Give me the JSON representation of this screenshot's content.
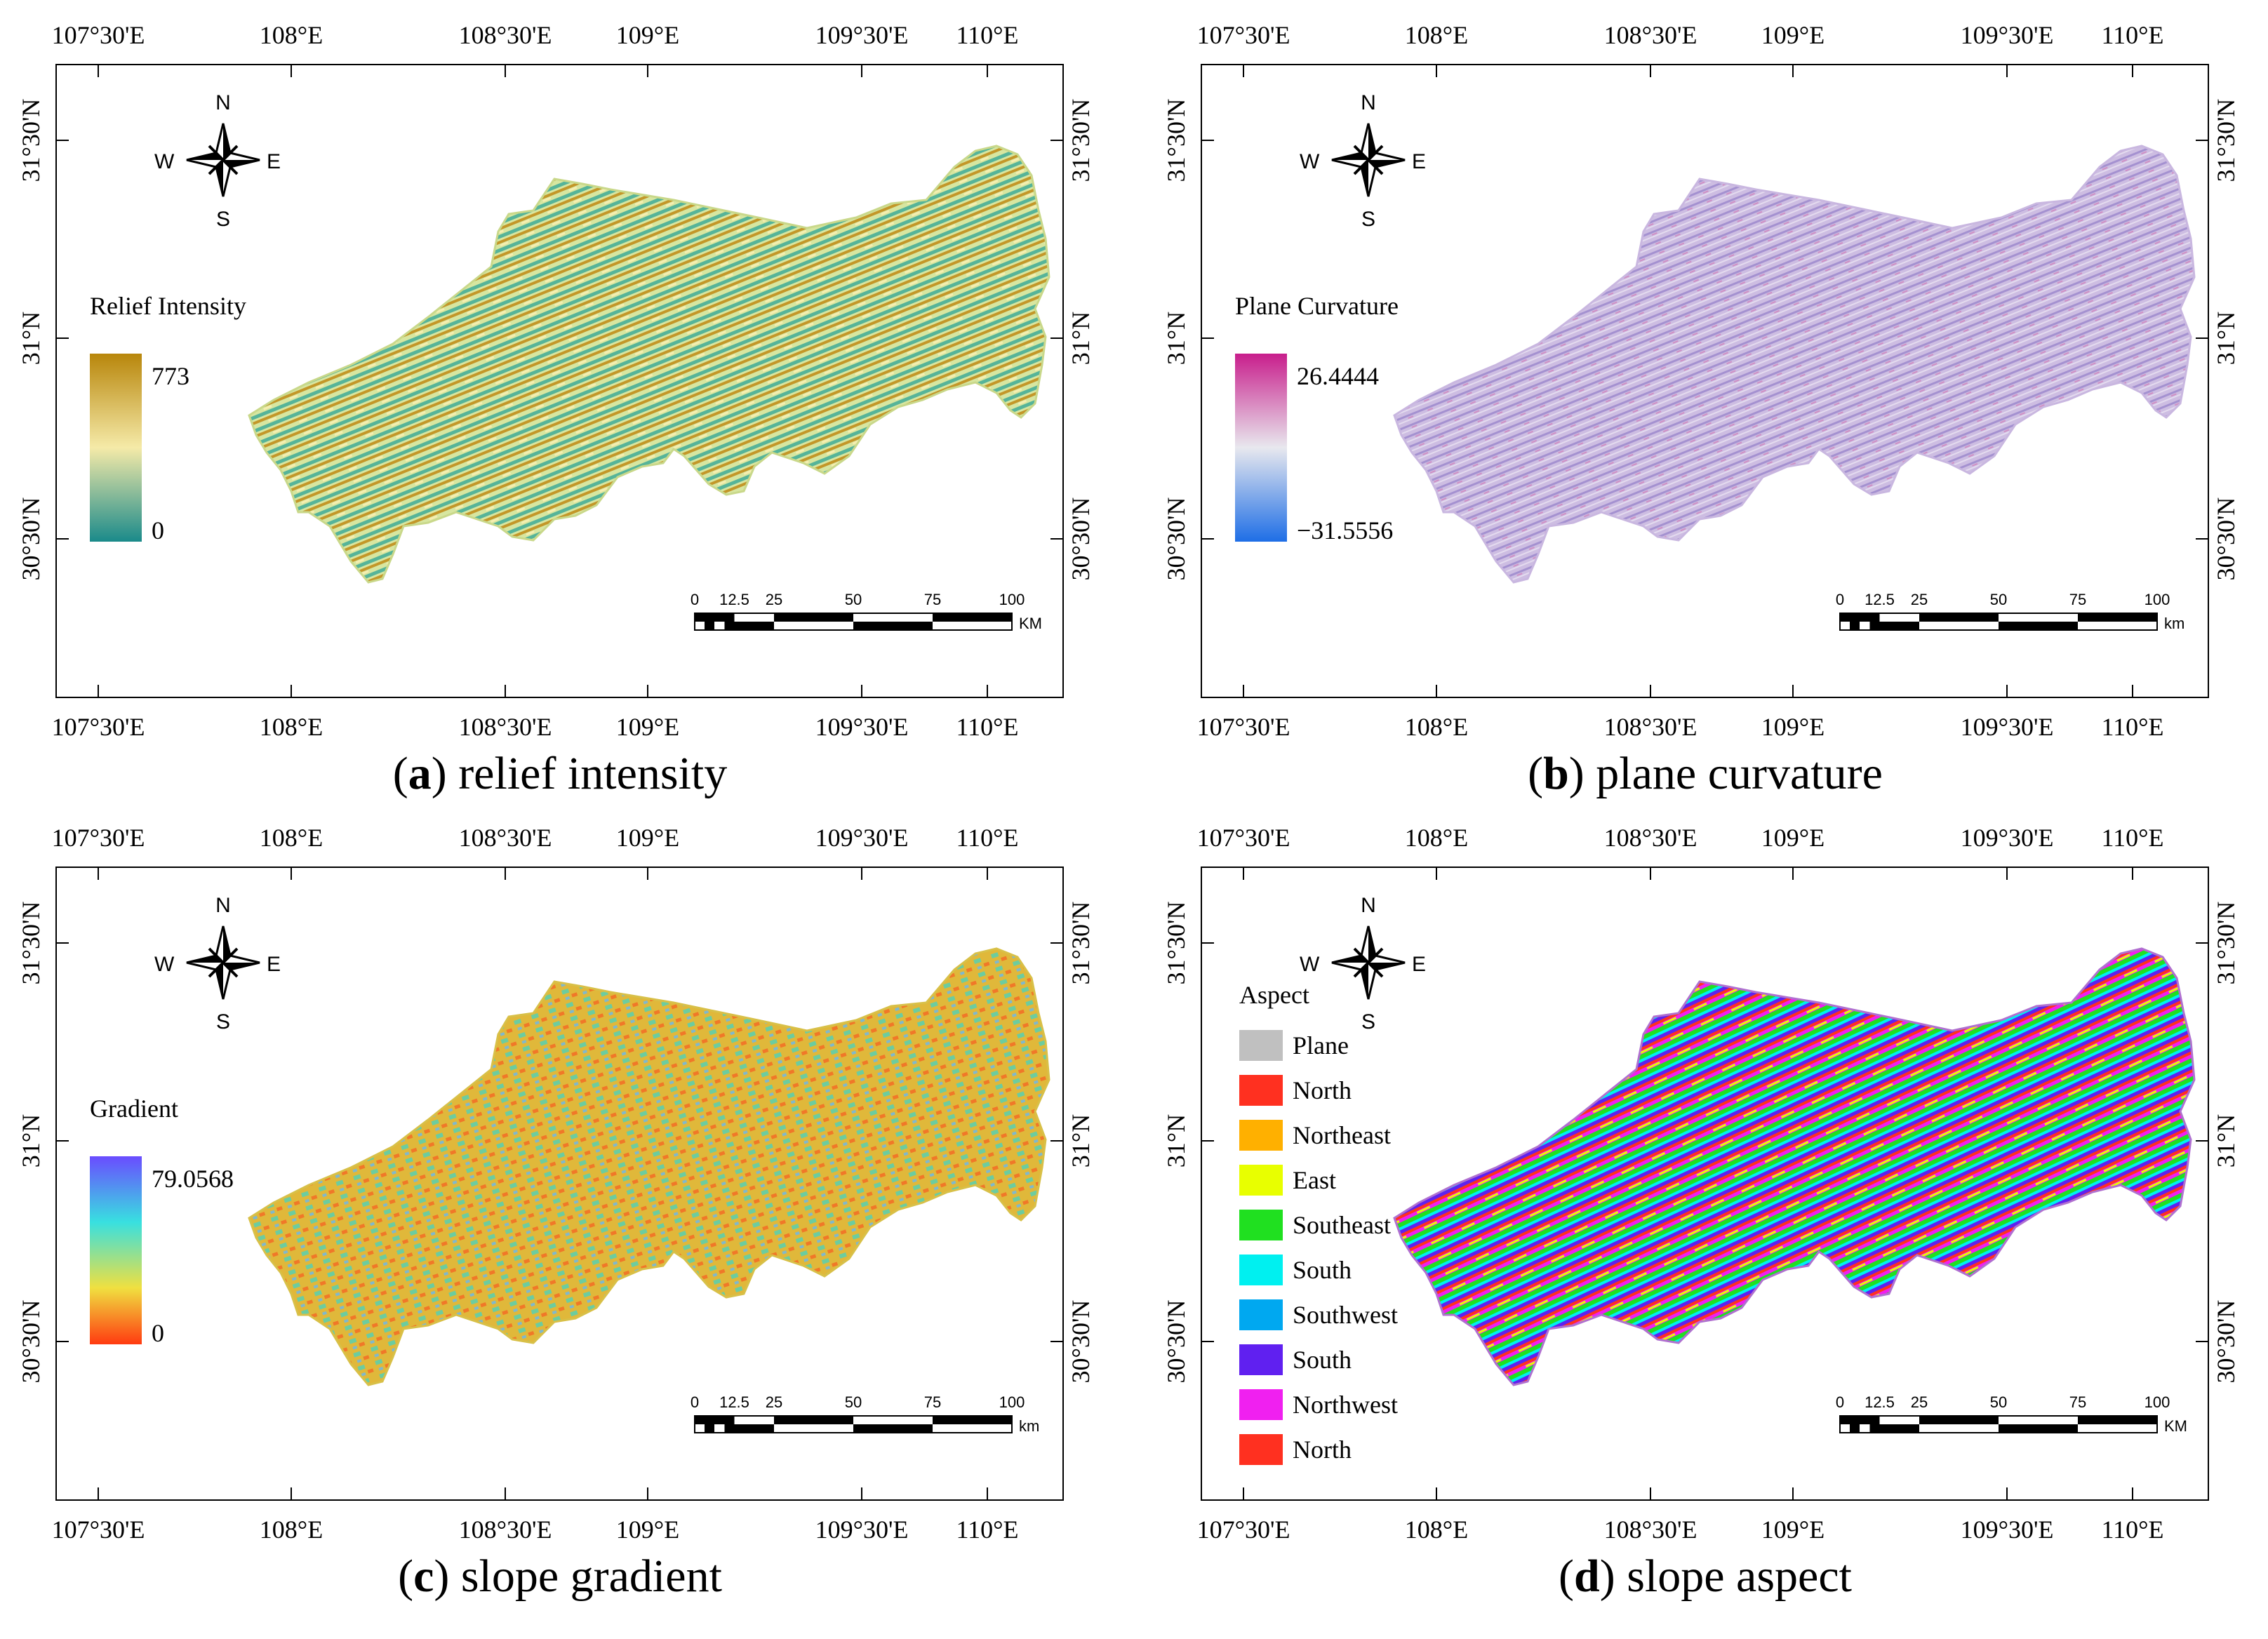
{
  "lon_labels": [
    "107°30'E",
    "108°E",
    "108°30'E",
    "109°E",
    "109°30'E",
    "110°E"
  ],
  "lat_labels": [
    "31°30'N",
    "31°N",
    "30°30'N"
  ],
  "compass": {
    "n": "N",
    "s": "S",
    "e": "E",
    "w": "W"
  },
  "scale_numbers": [
    "0",
    "12.5",
    "25",
    "50",
    "75",
    "100"
  ],
  "panels": [
    {
      "id": "a",
      "letter": "a",
      "caption_text": " relief intensity",
      "legend_title": "Relief Intensity",
      "legend_max": "773",
      "legend_min": "0",
      "unit": "KM",
      "colors": [
        "#b8860b",
        "#f5e9a8",
        "#1a8a8a"
      ],
      "map_fill": "#c9d88a"
    },
    {
      "id": "b",
      "letter": "b",
      "caption_text": " plane curvature",
      "legend_title": "Plane Curvature",
      "legend_max": "26.4444",
      "legend_min": "−31.5556",
      "unit": "km",
      "colors": [
        "#c81e8c",
        "#e6e6ee",
        "#1e6ee6"
      ],
      "map_fill": "#c9b7e0"
    },
    {
      "id": "c",
      "letter": "c",
      "caption_text": " slope gradient",
      "legend_title": "Gradient",
      "legend_max": "79.0568",
      "legend_min": "0",
      "unit": "km",
      "colors": [
        "#6a4cff",
        "#38e0e0",
        "#f0e040",
        "#ff3a10"
      ],
      "map_fill": "#d8c048"
    },
    {
      "id": "d",
      "letter": "d",
      "caption_text": " slope aspect",
      "legend_title": "Aspect",
      "unit": "KM",
      "map_fill": "#b070d0",
      "classes": [
        {
          "label": "Plane",
          "color": "#c0c0c0"
        },
        {
          "label": "North",
          "color": "#ff3020"
        },
        {
          "label": "Northeast",
          "color": "#ffb000"
        },
        {
          "label": "East",
          "color": "#e8ff00"
        },
        {
          "label": "Southeast",
          "color": "#20e020"
        },
        {
          "label": "South",
          "color": "#00f0f0"
        },
        {
          "label": "Southwest",
          "color": "#00a8f0"
        },
        {
          "label": "South",
          "color": "#6020f0"
        },
        {
          "label": "Northwest",
          "color": "#f020f0"
        },
        {
          "label": "North",
          "color": "#ff3020"
        }
      ]
    }
  ]
}
